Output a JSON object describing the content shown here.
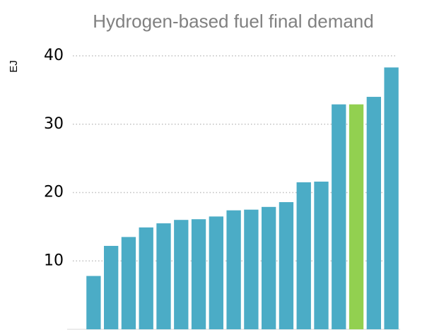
{
  "chart_data": {
    "type": "bar",
    "title": "Hydrogen-based fuel final demand",
    "y_label": "EJ",
    "categories": [
      null,
      null,
      null,
      null,
      null,
      null,
      null,
      null,
      null,
      null,
      null,
      null,
      null,
      null,
      null,
      null,
      null,
      null
    ],
    "values": [
      7.8,
      12.2,
      13.5,
      14.9,
      15.5,
      16.0,
      16.1,
      16.5,
      17.4,
      17.5,
      17.9,
      18.6,
      21.5,
      21.6,
      32.9,
      32.9,
      34.0,
      38.3
    ],
    "colors": [
      "#4bacc6",
      "#4bacc6",
      "#4bacc6",
      "#4bacc6",
      "#4bacc6",
      "#4bacc6",
      "#4bacc6",
      "#4bacc6",
      "#4bacc6",
      "#4bacc6",
      "#4bacc6",
      "#4bacc6",
      "#4bacc6",
      "#4bacc6",
      "#4bacc6",
      "#92d050",
      "#4bacc6",
      "#4bacc6"
    ],
    "ylim": [
      0,
      40
    ],
    "yticks": [
      10,
      20,
      30,
      40
    ],
    "grid": true
  }
}
